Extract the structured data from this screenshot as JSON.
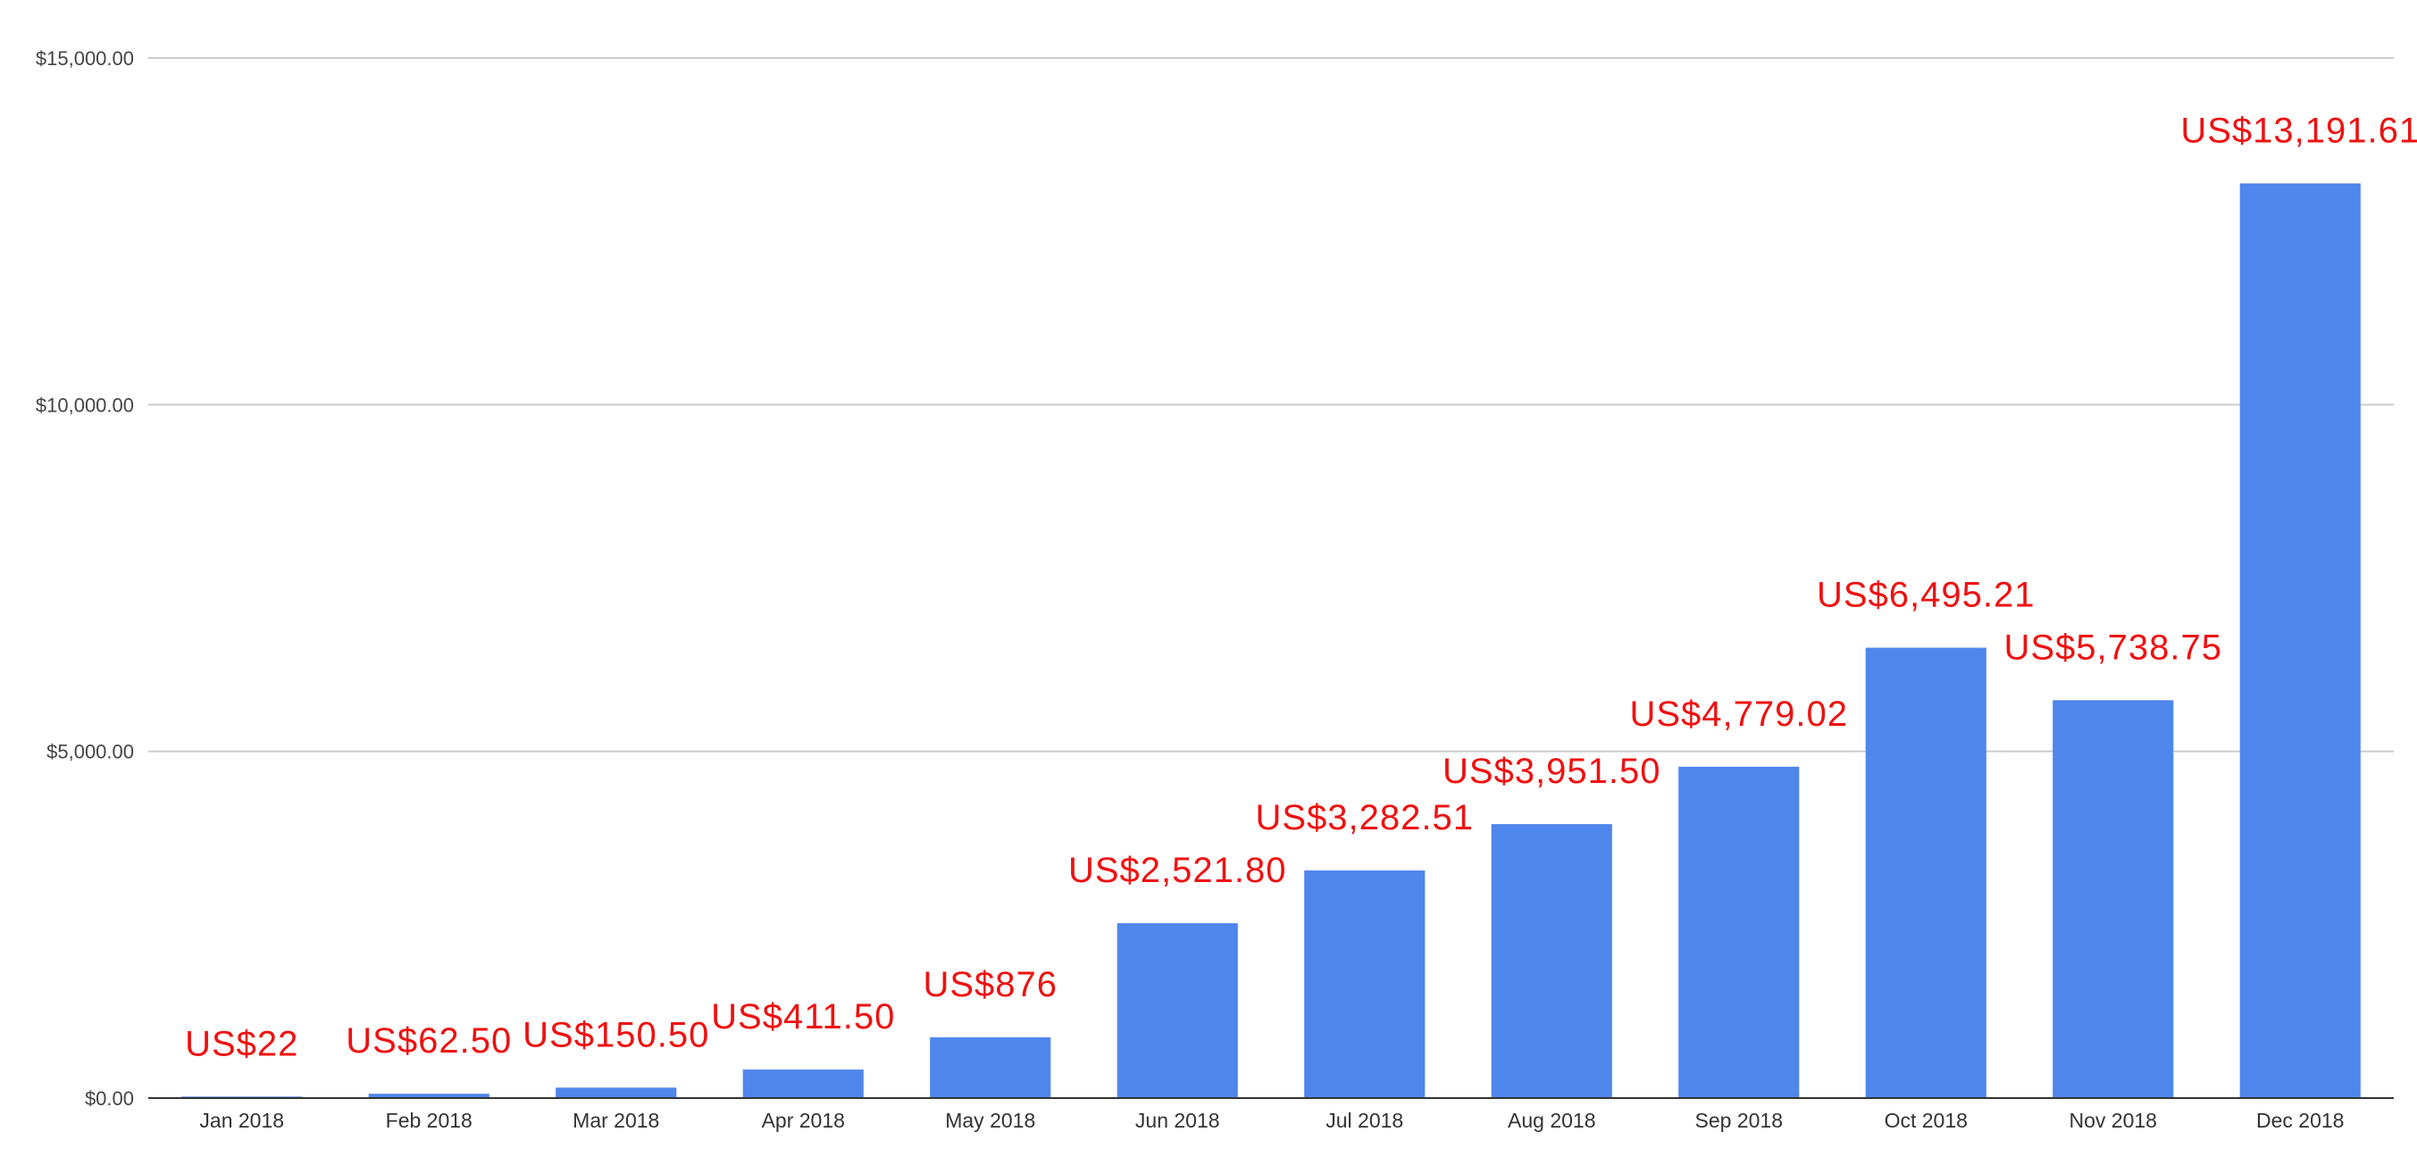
{
  "chart_data": {
    "type": "bar",
    "title": "",
    "xlabel": "",
    "ylabel": "",
    "categories": [
      "Jan 2018",
      "Feb 2018",
      "Mar 2018",
      "Apr 2018",
      "May 2018",
      "Jun 2018",
      "Jul 2018",
      "Aug 2018",
      "Sep 2018",
      "Oct 2018",
      "Nov 2018",
      "Dec 2018"
    ],
    "series": [
      {
        "values": [
          22,
          62.5,
          150.5,
          411.5,
          876,
          2521.8,
          3282.51,
          3951.5,
          4779.02,
          6495.21,
          5738.75,
          13191.61
        ],
        "data_labels": [
          "US$22",
          "US$62.50",
          "US$150.50",
          "US$411.50",
          "US$876",
          "US$2,521.80",
          "US$3,282.51",
          "US$3,951.50",
          "US$4,779.02",
          "US$6,495.21",
          "US$5,738.75",
          "US$13,191.61"
        ]
      }
    ],
    "ylim": [
      0,
      15000
    ],
    "yticks": [
      0,
      5000,
      10000,
      15000
    ],
    "ytick_labels": [
      "$0.00",
      "$5,000.00",
      "$10,000.00",
      "$15,000.00"
    ],
    "grid": true,
    "legend": "none",
    "colors": {
      "bar": "#4f86ec",
      "data_label": "#ee1111",
      "grid": "#cccccc",
      "axis": "#333333"
    }
  }
}
